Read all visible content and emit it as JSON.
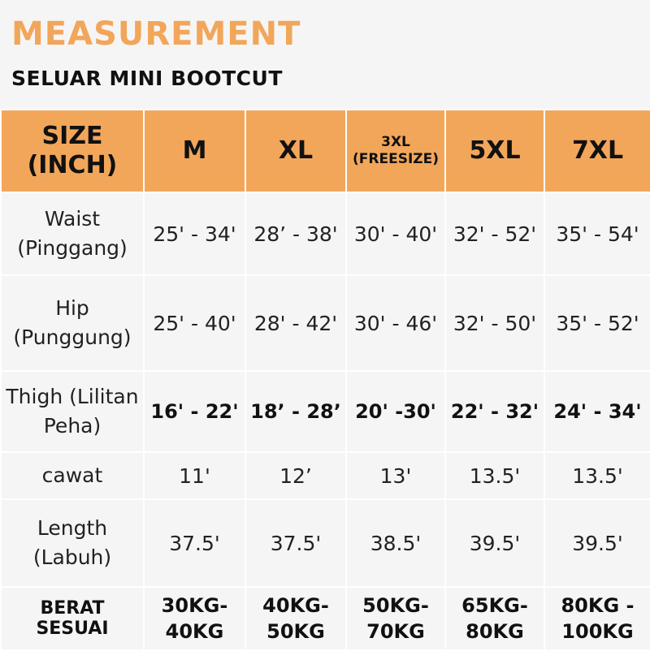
{
  "header": {
    "title": "MEASUREMENT",
    "subtitle": "SELUAR MINI BOOTCUT"
  },
  "colors": {
    "accent": "#f2a65a",
    "background": "#f5f5f5",
    "text": "#111111"
  },
  "table": {
    "corner": [
      "SIZE",
      "(INCH)"
    ],
    "sizes": [
      [
        "M"
      ],
      [
        "XL"
      ],
      [
        "3XL",
        "(FREESIZE)"
      ],
      [
        "5XL"
      ],
      [
        "7XL"
      ]
    ],
    "rows": [
      {
        "label": [
          "Waist",
          "(Pinggang)"
        ],
        "values": [
          "25' - 34'",
          "28’ - 38'",
          "30' - 40'",
          "32' - 52'",
          "35' - 54'"
        ]
      },
      {
        "label": [
          "Hip",
          "(Punggung)"
        ],
        "values": [
          "25' - 40'",
          "28' - 42'",
          "30' - 46'",
          "32' - 50'",
          "35' - 52'"
        ]
      },
      {
        "label": [
          "Thigh (Lilitan",
          "Peha)"
        ],
        "values": [
          "16' - 22'",
          "18’ - 28’",
          "20' -30'",
          "22' - 32'",
          "24' - 34'"
        ]
      },
      {
        "label": [
          "cawat"
        ],
        "values": [
          "11'",
          "12’",
          "13'",
          "13.5'",
          "13.5'"
        ]
      },
      {
        "label": [
          "Length",
          "(Labuh)"
        ],
        "values": [
          "37.5'",
          "37.5'",
          "38.5'",
          "39.5'",
          "39.5'"
        ]
      }
    ],
    "weight": {
      "label": [
        "BERAT",
        "SESUAI"
      ],
      "values": [
        [
          "30KG-",
          "40KG"
        ],
        [
          "40KG-",
          "50KG"
        ],
        [
          "50KG-",
          "70KG"
        ],
        [
          "65KG-",
          "80KG"
        ],
        [
          "80KG -",
          "100KG"
        ]
      ]
    }
  }
}
